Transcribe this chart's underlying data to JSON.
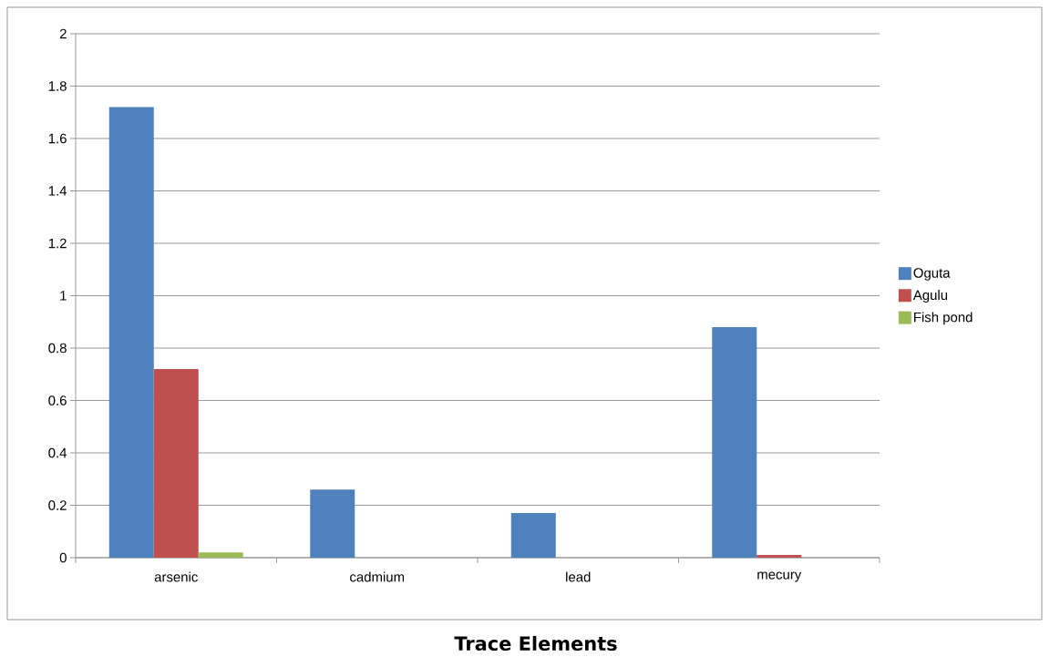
{
  "chart_data": {
    "type": "bar",
    "xlabel": "Trace Elements",
    "categories": [
      "arsenic",
      "cadmium",
      "lead",
      "mecury"
    ],
    "series": [
      {
        "name": "Oguta",
        "color": "#4f81bd",
        "values": [
          1.72,
          0.26,
          0.17,
          0.88
        ]
      },
      {
        "name": "Agulu",
        "color": "#c0504d",
        "values": [
          0.72,
          0,
          0,
          0.01
        ]
      },
      {
        "name": "Fish pond",
        "color": "#9bbb59",
        "values": [
          0.02,
          0,
          0,
          0
        ]
      }
    ],
    "ylim": [
      0,
      2
    ],
    "yticks": [
      0,
      0.2,
      0.4,
      0.6,
      0.8,
      1,
      1.2,
      1.4,
      1.6,
      1.8,
      2
    ],
    "grid": "y",
    "legend": "right"
  }
}
